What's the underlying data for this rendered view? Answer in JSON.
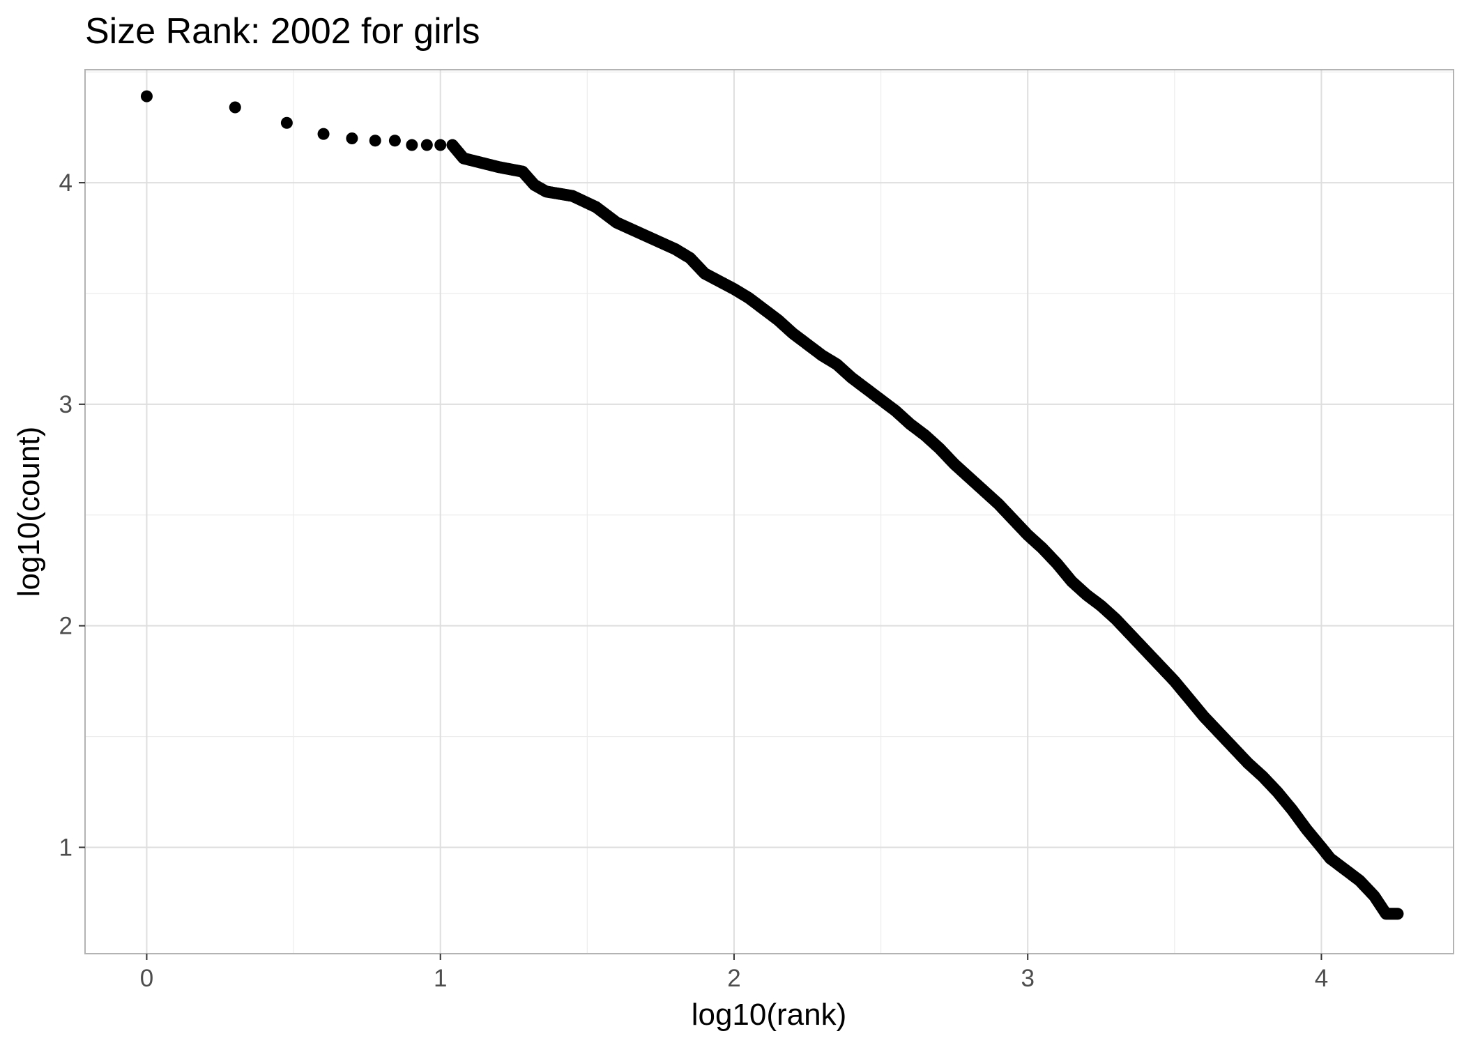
{
  "chart_data": {
    "type": "scatter",
    "title": "Size Rank: 2002 for girls",
    "xlabel": "log10(rank)",
    "ylabel": "log10(count)",
    "xlim": [
      -0.21,
      4.45
    ],
    "ylim": [
      0.52,
      4.51
    ],
    "x_ticks": [
      0,
      1,
      2,
      3,
      4
    ],
    "y_ticks": [
      1,
      2,
      3,
      4
    ],
    "x_tick_labels": [
      "0",
      "1",
      "2",
      "3",
      "4"
    ],
    "y_tick_labels": [
      "1",
      "2",
      "3",
      "4"
    ],
    "grid": true,
    "point_color": "#000000",
    "curve_points": [
      [
        0.0,
        4.39
      ],
      [
        0.301,
        4.34
      ],
      [
        0.477,
        4.27
      ],
      [
        0.602,
        4.22
      ],
      [
        0.699,
        4.2
      ],
      [
        0.778,
        4.19
      ],
      [
        0.845,
        4.19
      ],
      [
        0.903,
        4.17
      ],
      [
        0.954,
        4.17
      ],
      [
        1.0,
        4.17
      ],
      [
        1.041,
        4.17
      ],
      [
        1.079,
        4.11
      ],
      [
        1.2,
        4.07
      ],
      [
        1.28,
        4.05
      ],
      [
        1.32,
        3.99
      ],
      [
        1.36,
        3.96
      ],
      [
        1.45,
        3.94
      ],
      [
        1.53,
        3.89
      ],
      [
        1.6,
        3.82
      ],
      [
        1.65,
        3.79
      ],
      [
        1.7,
        3.76
      ],
      [
        1.75,
        3.73
      ],
      [
        1.8,
        3.7
      ],
      [
        1.85,
        3.66
      ],
      [
        1.9,
        3.59
      ],
      [
        2.0,
        3.52
      ],
      [
        2.05,
        3.48
      ],
      [
        2.1,
        3.43
      ],
      [
        2.15,
        3.38
      ],
      [
        2.2,
        3.32
      ],
      [
        2.25,
        3.27
      ],
      [
        2.3,
        3.22
      ],
      [
        2.35,
        3.18
      ],
      [
        2.4,
        3.12
      ],
      [
        2.45,
        3.07
      ],
      [
        2.5,
        3.02
      ],
      [
        2.55,
        2.97
      ],
      [
        2.6,
        2.91
      ],
      [
        2.65,
        2.86
      ],
      [
        2.7,
        2.8
      ],
      [
        2.75,
        2.73
      ],
      [
        2.8,
        2.67
      ],
      [
        2.85,
        2.61
      ],
      [
        2.9,
        2.55
      ],
      [
        2.95,
        2.48
      ],
      [
        3.0,
        2.41
      ],
      [
        3.05,
        2.35
      ],
      [
        3.1,
        2.28
      ],
      [
        3.15,
        2.2
      ],
      [
        3.2,
        2.14
      ],
      [
        3.25,
        2.09
      ],
      [
        3.3,
        2.03
      ],
      [
        3.35,
        1.96
      ],
      [
        3.4,
        1.89
      ],
      [
        3.45,
        1.82
      ],
      [
        3.5,
        1.75
      ],
      [
        3.55,
        1.67
      ],
      [
        3.6,
        1.59
      ],
      [
        3.65,
        1.52
      ],
      [
        3.7,
        1.45
      ],
      [
        3.75,
        1.38
      ],
      [
        3.8,
        1.32
      ],
      [
        3.85,
        1.25
      ],
      [
        3.9,
        1.17
      ],
      [
        3.95,
        1.08
      ],
      [
        4.0,
        1.0
      ],
      [
        4.03,
        0.95
      ],
      [
        4.08,
        0.9
      ],
      [
        4.13,
        0.85
      ],
      [
        4.18,
        0.78
      ],
      [
        4.22,
        0.7
      ],
      [
        4.26,
        0.7
      ]
    ]
  }
}
